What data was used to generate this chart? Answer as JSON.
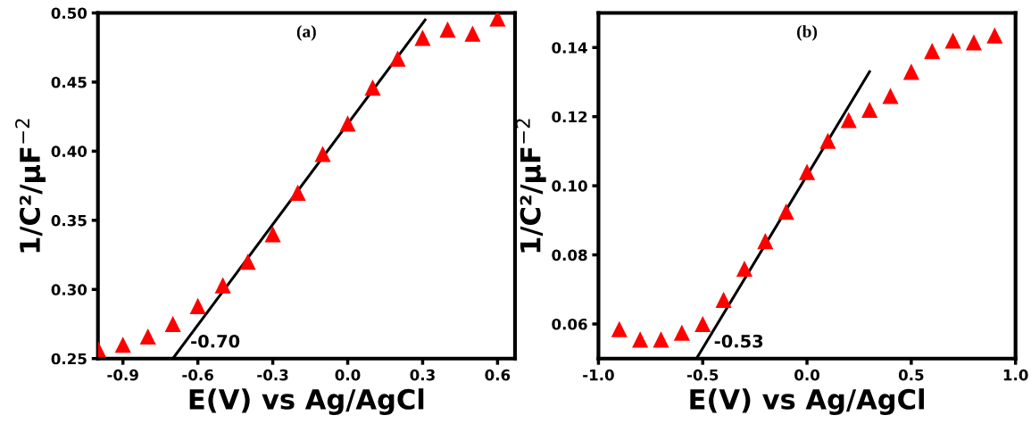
{
  "chart_data": [
    {
      "type": "scatter",
      "title": "(a)",
      "xlabel": "E(V) vs Ag/AgCl",
      "ylabel": "1/C²/μF$^{−2}$",
      "xlim": [
        -1.0,
        0.67
      ],
      "ylim": [
        0.25,
        0.5
      ],
      "xticks": [
        -0.9,
        -0.6,
        -0.3,
        {
          "value": 0.0,
          "label": "0.0"
        },
        0.3,
        0.6
      ],
      "yticks": [
        0.25,
        {
          "value": 0.3,
          "label": "0.30"
        },
        0.35,
        {
          "value": 0.4,
          "label": "0.40"
        },
        0.45,
        {
          "value": 0.5,
          "label": "0.50"
        }
      ],
      "grid": false,
      "legend": false,
      "x": [
        -1.0,
        -0.9,
        -0.8,
        -0.7,
        -0.6,
        -0.5,
        -0.4,
        -0.3,
        -0.2,
        -0.1,
        0.0,
        0.1,
        0.2,
        0.3,
        0.4,
        0.5,
        0.6
      ],
      "series": [
        {
          "marker": "triangle",
          "color": "#ff0000",
          "values": [
            0.257,
            0.26,
            0.266,
            0.275,
            0.288,
            0.303,
            0.32,
            0.34,
            0.37,
            0.398,
            0.42,
            0.446,
            0.467,
            0.482,
            0.488,
            0.485,
            0.496
          ]
        },
        {
          "type": "line",
          "marker": "none",
          "color": "#000000",
          "x": [
            -0.7,
            0.31
          ],
          "values": [
            0.25,
            0.495
          ]
        }
      ],
      "annotations": [
        {
          "text": "-0.70",
          "x": -0.7,
          "y": 0.25
        }
      ]
    },
    {
      "type": "scatter",
      "title": "(b)",
      "xlabel": "E(V) vs Ag/AgCl",
      "ylabel": "1/C²/μF$^{−2}$",
      "xlim": [
        -1.0,
        1.0
      ],
      "ylim": [
        0.05,
        0.15
      ],
      "xticks": [
        {
          "value": -1.0,
          "label": "-1.0"
        },
        -0.5,
        {
          "value": 0.0,
          "label": "0.0"
        },
        0.5,
        {
          "value": 1.0,
          "label": "1.0"
        }
      ],
      "yticks": [
        0.06,
        0.08,
        {
          "value": 0.1,
          "label": "0.10"
        },
        0.12,
        0.14
      ],
      "grid": false,
      "legend": false,
      "x": [
        -0.9,
        -0.8,
        -0.7,
        -0.6,
        -0.5,
        -0.4,
        -0.3,
        -0.2,
        -0.1,
        0.0,
        0.1,
        0.2,
        0.3,
        0.4,
        0.5,
        0.6,
        0.7,
        0.8,
        0.9
      ],
      "series": [
        {
          "marker": "triangle",
          "color": "#ff0000",
          "values": [
            0.0585,
            0.0555,
            0.0555,
            0.0575,
            0.06,
            0.067,
            0.076,
            0.084,
            0.0925,
            0.104,
            0.113,
            0.119,
            0.122,
            0.126,
            0.133,
            0.139,
            0.142,
            0.1415,
            0.1435
          ]
        },
        {
          "type": "line",
          "marker": "none",
          "color": "#000000",
          "x": [
            -0.53,
            0.3
          ],
          "values": [
            0.05,
            0.133
          ]
        }
      ],
      "annotations": [
        {
          "text": "-0.53",
          "x": -0.53,
          "y": 0.05
        }
      ]
    }
  ]
}
